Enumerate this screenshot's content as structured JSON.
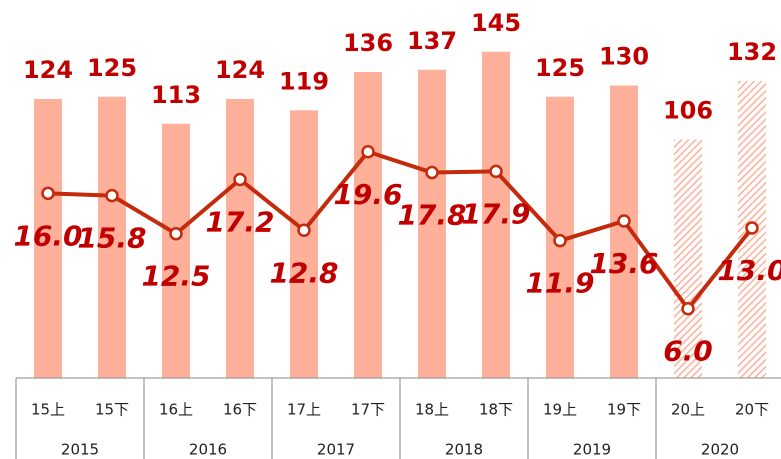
{
  "chart_data": {
    "type": "bar",
    "categories": [
      "15上",
      "15下",
      "16上",
      "16下",
      "17上",
      "17下",
      "18上",
      "18下",
      "19上",
      "19下",
      "20上",
      "20下"
    ],
    "groups": [
      "2015",
      "2016",
      "2017",
      "2018",
      "2019",
      "2020"
    ],
    "ylim": [
      0,
      168
    ],
    "y2lim": [
      0,
      32.75
    ],
    "series": [
      {
        "type": "bar",
        "color": "#ffb09a",
        "values": [
          124,
          125,
          113,
          124,
          119,
          136,
          137,
          145,
          125,
          130,
          106,
          132
        ],
        "hatched": [
          false,
          false,
          false,
          false,
          false,
          false,
          false,
          false,
          false,
          false,
          true,
          true
        ]
      },
      {
        "type": "line",
        "axis": "y2",
        "color": "#c42a0c",
        "values": [
          16.0,
          15.8,
          12.5,
          17.2,
          12.8,
          19.6,
          17.8,
          17.9,
          11.9,
          13.6,
          6.0,
          13.0
        ],
        "value_labels": [
          "16.0",
          "15.8",
          "12.5",
          "17.2",
          "12.8",
          "19.6",
          "17.8",
          "17.9",
          "11.9",
          "13.6",
          "6.0",
          "13.0"
        ]
      }
    ]
  }
}
